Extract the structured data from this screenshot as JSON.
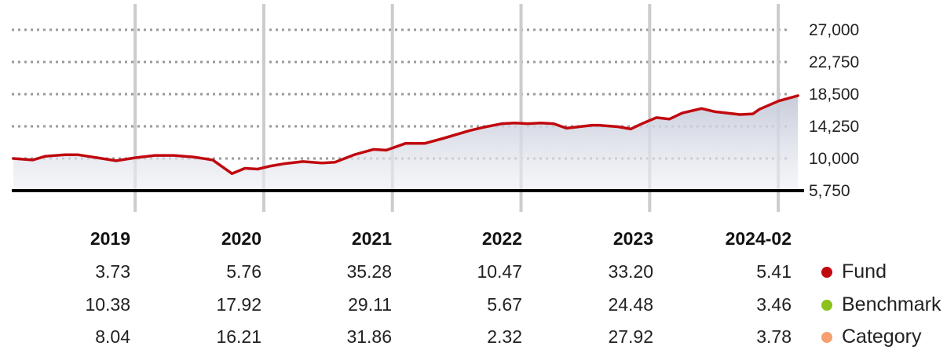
{
  "chart_data": {
    "type": "line",
    "y_ticks": [
      "27,000",
      "22,750",
      "18,500",
      "14,250",
      "10,000",
      "5,750"
    ],
    "ylim": [
      5750,
      27000
    ],
    "grid": true,
    "x_start": 2018.05,
    "x_end": 2024.25,
    "year_gridlines": [
      2019,
      2020,
      2021,
      2022,
      2023,
      2024
    ],
    "series": [
      {
        "name": "Fund",
        "color": "#c0090f",
        "x": [
          2018.05,
          2018.2,
          2018.3,
          2018.45,
          2018.55,
          2018.7,
          2018.85,
          2019.0,
          2019.15,
          2019.3,
          2019.45,
          2019.6,
          2019.75,
          2019.85,
          2019.95,
          2020.05,
          2020.15,
          2020.3,
          2020.45,
          2020.55,
          2020.7,
          2020.85,
          2020.95,
          2021.1,
          2021.25,
          2021.4,
          2021.6,
          2021.7,
          2021.85,
          2021.95,
          2022.05,
          2022.15,
          2022.25,
          2022.35,
          2022.55,
          2022.6,
          2022.75,
          2022.85,
          2022.95,
          2023.05,
          2023.15,
          2023.25,
          2023.4,
          2023.5,
          2023.6,
          2023.7,
          2023.8,
          2023.85,
          2024.0,
          2024.15
        ],
        "y": [
          10000,
          9800,
          10300,
          10500,
          10500,
          10100,
          9700,
          10100,
          10400,
          10400,
          10200,
          9800,
          8000,
          8700,
          8600,
          9000,
          9300,
          9600,
          9400,
          9500,
          10500,
          11200,
          11100,
          12000,
          12000,
          12700,
          13700,
          14100,
          14600,
          14700,
          14600,
          14700,
          14600,
          14000,
          14400,
          14400,
          14200,
          13900,
          14700,
          15400,
          15200,
          16000,
          16600,
          16200,
          16000,
          15800,
          15900,
          16500,
          17600,
          18300
        ],
        "note": ""
      }
    ],
    "table": {
      "columns": [
        "2019",
        "2020",
        "2021",
        "2022",
        "2023",
        "2024-02"
      ],
      "rows": [
        {
          "name": "Fund",
          "color": "#c0090f",
          "values": [
            "3.73",
            "5.76",
            "35.28",
            "10.47",
            "33.20",
            "5.41"
          ]
        },
        {
          "name": "Benchmark",
          "color": "#8cc21d",
          "values": [
            "10.38",
            "17.92",
            "29.11",
            "5.67",
            "24.48",
            "3.46"
          ]
        },
        {
          "name": "Category",
          "color": "#f5a06e",
          "values": [
            "8.04",
            "16.21",
            "31.86",
            "2.32",
            "27.92",
            "3.78"
          ]
        }
      ]
    }
  }
}
